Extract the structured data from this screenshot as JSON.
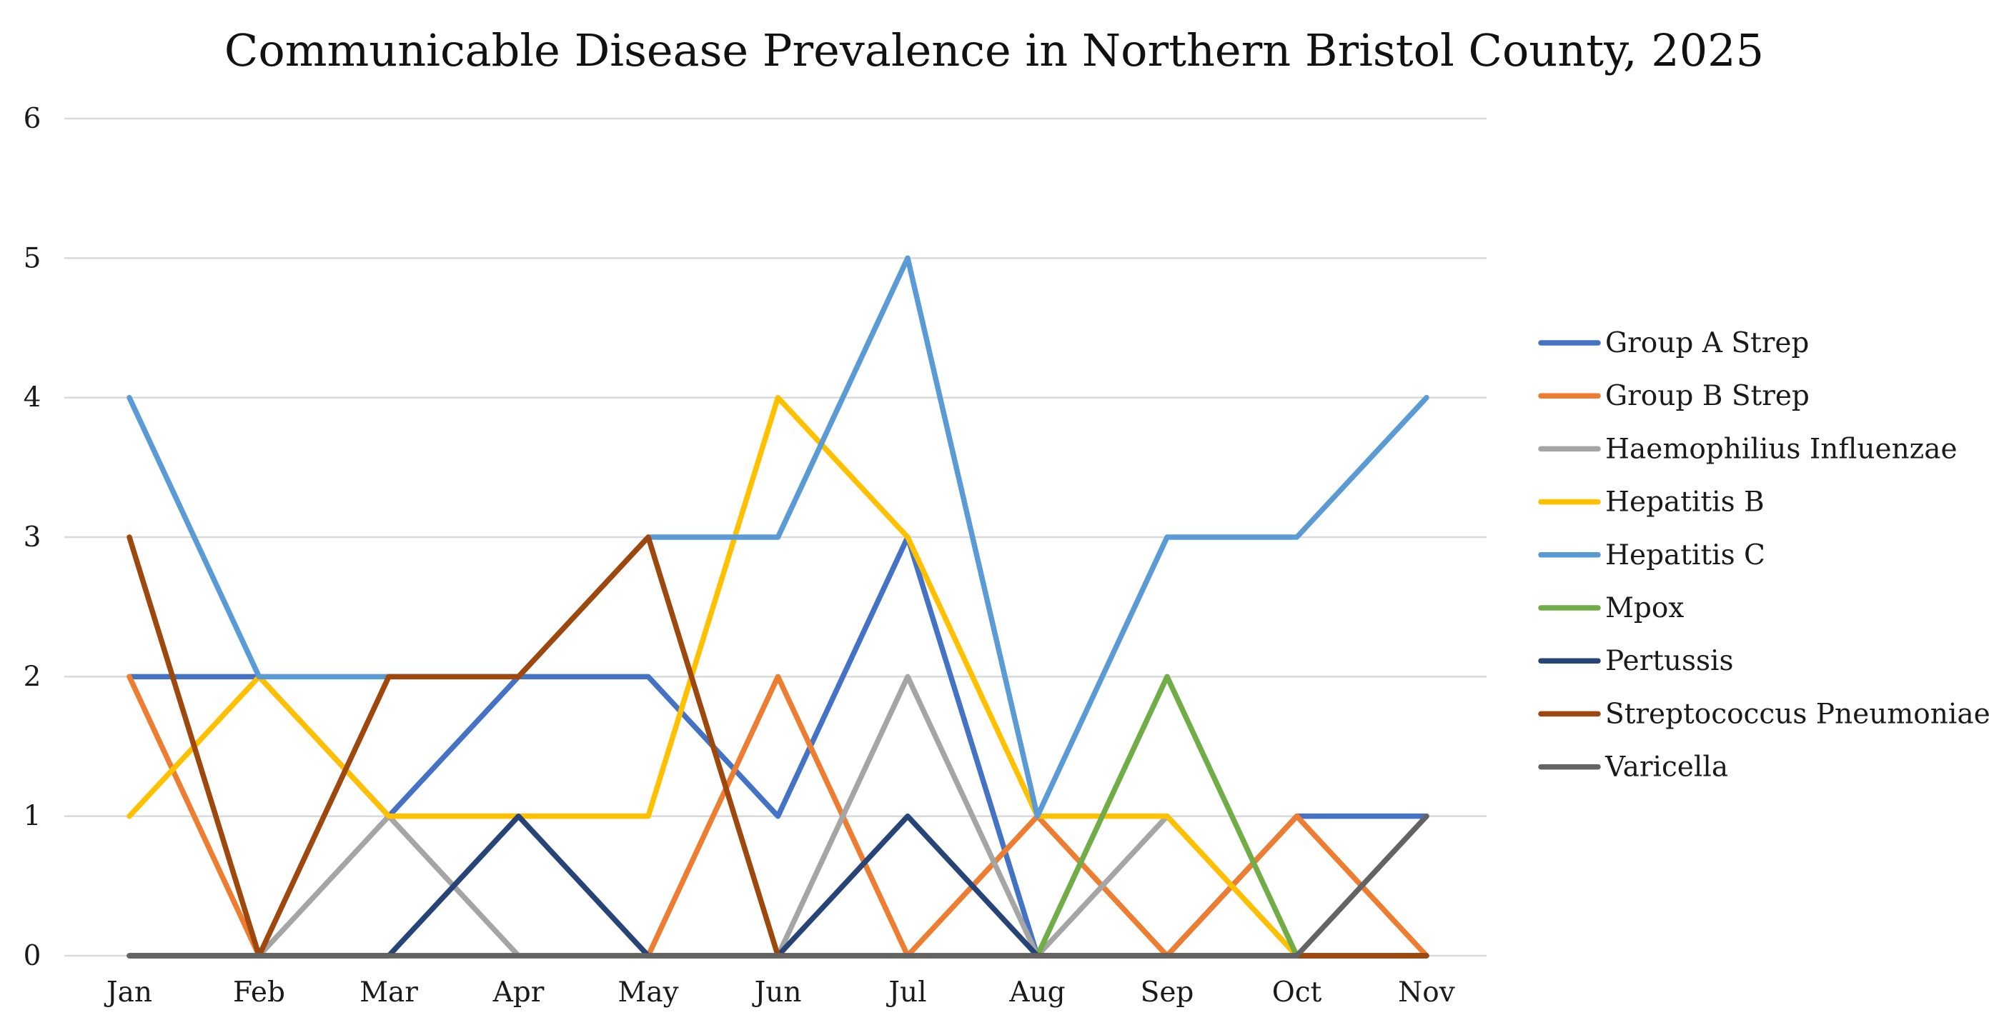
{
  "chart_data": {
    "type": "line",
    "title": "Communicable Disease Prevalence in Northern Bristol County, 2025",
    "xlabel": "",
    "ylabel": "",
    "categories": [
      "Jan",
      "Feb",
      "Mar",
      "Apr",
      "May",
      "Jun",
      "Jul",
      "Aug",
      "Sep",
      "Oct",
      "Nov"
    ],
    "ylim": [
      0,
      6
    ],
    "yticks": [
      "0",
      "1",
      "2",
      "3",
      "4",
      "5",
      "6"
    ],
    "grid": true,
    "legend_position": "right",
    "series": [
      {
        "name": "Group A Strep",
        "color": "#4472C4",
        "values": [
          2,
          2,
          1,
          2,
          2,
          1,
          3,
          0,
          0,
          1,
          1
        ]
      },
      {
        "name": "Group B Strep",
        "color": "#ED7D31",
        "values": [
          2,
          0,
          0,
          0,
          0,
          2,
          0,
          1,
          0,
          1,
          0
        ]
      },
      {
        "name": "Haemophilius Influenzae",
        "color": "#A5A5A5",
        "values": [
          0,
          0,
          1,
          0,
          0,
          0,
          2,
          0,
          1,
          0,
          0
        ]
      },
      {
        "name": "Hepatitis B",
        "color": "#FFC000",
        "values": [
          1,
          2,
          1,
          1,
          1,
          4,
          3,
          1,
          1,
          0,
          0
        ]
      },
      {
        "name": "Hepatitis C",
        "color": "#5B9BD5",
        "values": [
          4,
          2,
          2,
          2,
          3,
          3,
          5,
          1,
          3,
          3,
          4
        ]
      },
      {
        "name": "Mpox",
        "color": "#70AD47",
        "values": [
          0,
          0,
          0,
          0,
          0,
          0,
          0,
          0,
          2,
          0,
          0
        ]
      },
      {
        "name": "Pertussis",
        "color": "#264478",
        "values": [
          0,
          0,
          0,
          1,
          0,
          0,
          1,
          0,
          0,
          0,
          0
        ]
      },
      {
        "name": "Streptococcus Pneumoniae",
        "color": "#9E480E",
        "values": [
          3,
          0,
          2,
          2,
          3,
          0,
          0,
          0,
          0,
          0,
          0
        ]
      },
      {
        "name": "Varicella",
        "color": "#636363",
        "values": [
          0,
          0,
          0,
          0,
          0,
          0,
          0,
          0,
          0,
          0,
          1
        ]
      }
    ]
  }
}
